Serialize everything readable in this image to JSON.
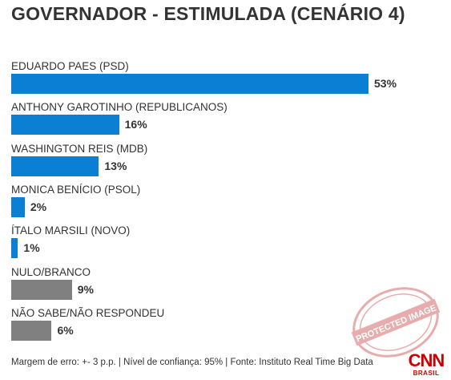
{
  "chart_data": {
    "type": "bar",
    "orientation": "horizontal",
    "title": "GOVERNADOR - ESTIMULADA (CENÁRIO 4)",
    "categories": [
      "EDUARDO PAES (PSD)",
      "ANTHONY GAROTINHO (REPUBLICANOS)",
      "WASHINGTON REIS (MDB)",
      "MONICA BENÍCIO (PSOL)",
      "ÍTALO MARSILI (NOVO)",
      "NULO/BRANCO",
      "NÃO SABE/NÃO RESPONDEU"
    ],
    "values": [
      53,
      16,
      13,
      2,
      1,
      9,
      6
    ],
    "value_labels": [
      "53%",
      "16%",
      "13%",
      "2%",
      "1%",
      "9%",
      "6%"
    ],
    "colors": [
      "#0a7fd4",
      "#0a7fd4",
      "#0a7fd4",
      "#0a7fd4",
      "#0a7fd4",
      "#808080",
      "#808080"
    ],
    "xlim": [
      0,
      53
    ],
    "grid": false,
    "legend": "none"
  },
  "footer": "Margem de erro: +- 3 p.p. | Nível de confiança: 95% | Fonte: Instituto Real Time Big Data",
  "watermark_text": "PROTECTED IMAGE",
  "logo": {
    "text": "CNN",
    "subtitle": "BRASIL",
    "color": "#cc0000"
  }
}
